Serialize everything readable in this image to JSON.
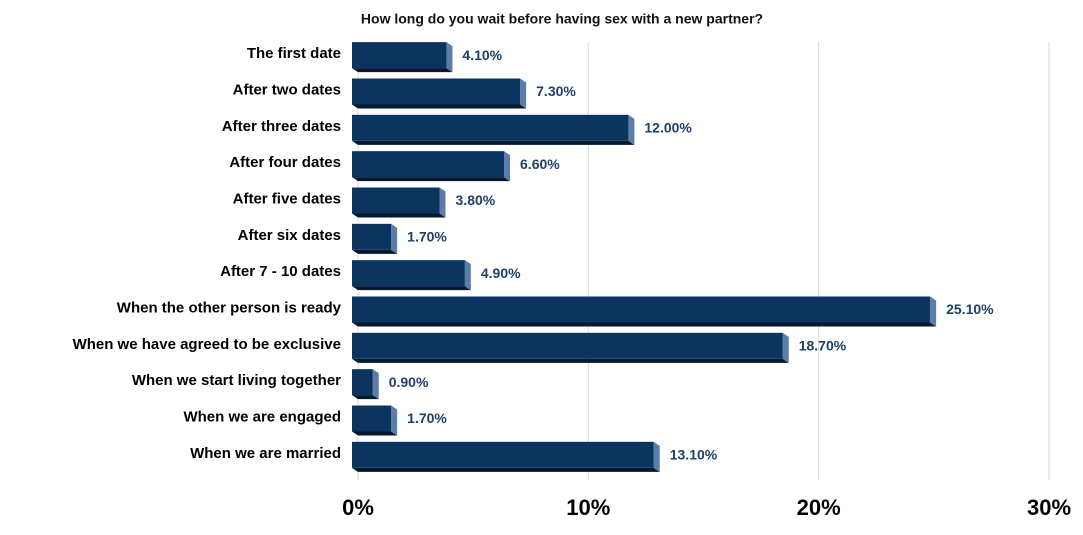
{
  "chart_data": {
    "type": "hbar",
    "title": "How long do you wait before having sex with a new partner?",
    "categories": [
      "The first date",
      "After two dates",
      "After three dates",
      "After four dates",
      "After five dates",
      "After six dates",
      "After 7 - 10 dates",
      "When the other person is ready",
      "When we have agreed to be exclusive",
      "When we start living together",
      "When we are engaged",
      "When we are married"
    ],
    "values": [
      4.1,
      7.3,
      12,
      6.6,
      3.8,
      1.7,
      4.9,
      25.1,
      18.7,
      0.9,
      1.7,
      13.1
    ],
    "value_labels": [
      "4.10%",
      "7.30%",
      "12.00%",
      "6.60%",
      "3.80%",
      "1.70%",
      "4.90%",
      "25.10%",
      "18.70%",
      "0.90%",
      "1.70%",
      "13.10%"
    ],
    "color": "#0b3461",
    "xlim": [
      0,
      30
    ],
    "xticks": [
      {
        "value": 0,
        "label": "0%"
      },
      {
        "value": 10,
        "label": "10%"
      },
      {
        "value": 20,
        "label": "20%"
      },
      {
        "value": 30,
        "label": "30%"
      }
    ],
    "grid": true
  }
}
